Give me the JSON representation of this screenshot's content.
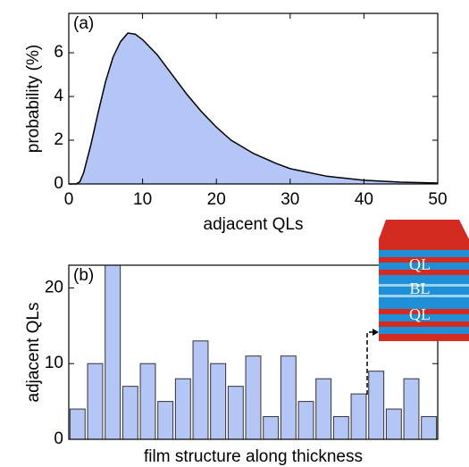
{
  "chart_data": [
    {
      "type": "area",
      "title": "(a)",
      "xlabel": "adjacent QLs",
      "ylabel": "probability (%)",
      "x": [
        0,
        1,
        1.5,
        2,
        3,
        4,
        5,
        6,
        7,
        8,
        9,
        10,
        12,
        14,
        16,
        18,
        20,
        22,
        25,
        28,
        30,
        35,
        40,
        45,
        50
      ],
      "values": [
        0,
        0,
        0.1,
        0.5,
        1.8,
        3.3,
        4.7,
        5.8,
        6.5,
        6.9,
        6.85,
        6.6,
        5.9,
        5.0,
        4.1,
        3.3,
        2.6,
        2.0,
        1.4,
        0.95,
        0.7,
        0.35,
        0.17,
        0.08,
        0.04
      ],
      "color": "#b4c6f6",
      "line_color": "#000000",
      "xlim": [
        0,
        50
      ],
      "xticks": [
        0,
        10,
        20,
        30,
        40,
        50
      ],
      "ylim": [
        0,
        7.8
      ],
      "yticks": [
        0,
        2,
        4,
        6
      ]
    },
    {
      "type": "bar",
      "title": "(b)",
      "xlabel": "film structure along thickness",
      "ylabel": "adjacent QLs",
      "categories": [
        null,
        null,
        null,
        null,
        null,
        null,
        null,
        null,
        null,
        null,
        null,
        null,
        null,
        null,
        null,
        null,
        null,
        null,
        null,
        null,
        null
      ],
      "values": [
        4,
        10,
        23,
        7,
        10,
        5,
        8,
        13,
        10,
        7,
        11,
        3,
        11,
        5,
        8,
        3,
        6,
        9,
        4,
        8,
        3
      ],
      "color": "#b4c6f6",
      "ylim": [
        0,
        23
      ],
      "yticks": [
        0,
        10,
        20
      ]
    }
  ],
  "inset": {
    "labels": [
      "QL",
      "BL",
      "QL"
    ]
  }
}
